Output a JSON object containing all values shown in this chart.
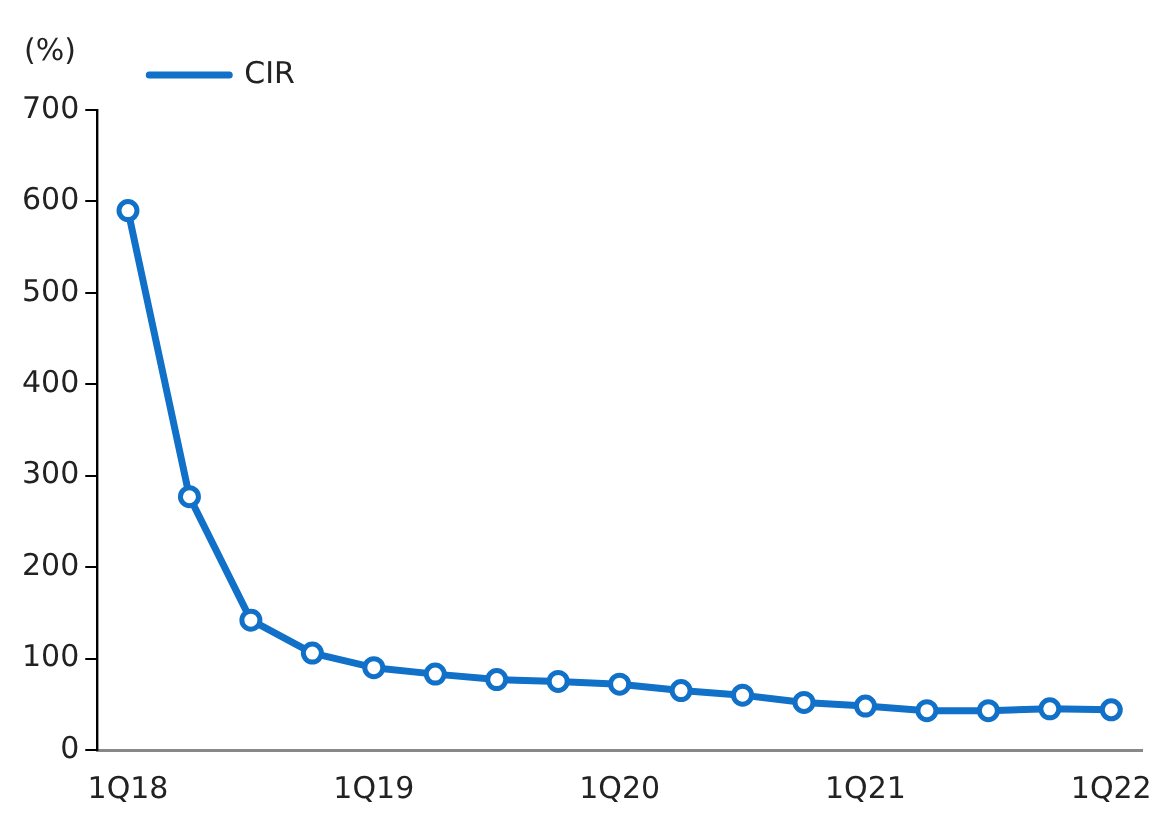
{
  "chart_data": {
    "type": "line",
    "ylabel": "(%)",
    "categories": [
      "1Q18",
      null,
      null,
      null,
      "1Q19",
      null,
      null,
      null,
      "1Q20",
      null,
      null,
      null,
      "1Q21",
      null,
      null,
      null,
      "1Q22"
    ],
    "series": [
      {
        "name": "CIR",
        "color": "#1170c8",
        "values": [
          590,
          277,
          142,
          106,
          90,
          83,
          77,
          75,
          72,
          65,
          60,
          52,
          48,
          43,
          43,
          45,
          44
        ]
      }
    ],
    "ylim": [
      0,
      700
    ],
    "yticks": [
      0,
      100,
      200,
      300,
      400,
      500,
      600,
      700
    ],
    "grid": false,
    "legend": "top",
    "marker": "circle",
    "line_style": "solid"
  }
}
